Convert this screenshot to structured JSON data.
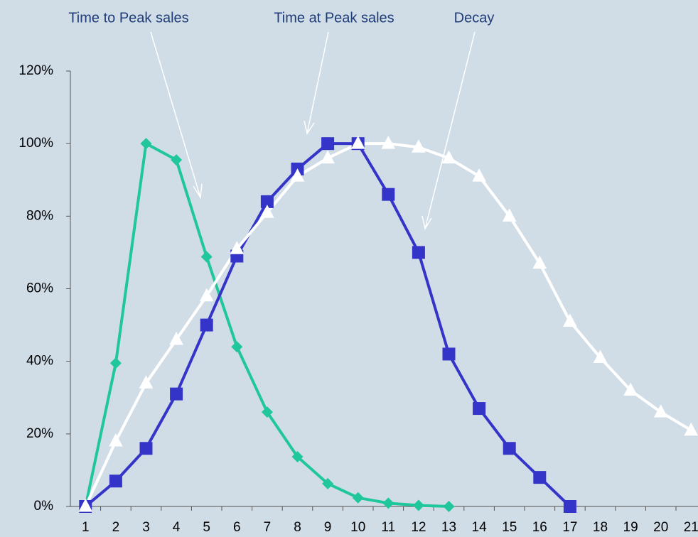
{
  "chart_data": {
    "type": "line",
    "annotations": [
      "Time to Peak sales",
      "Time at Peak sales",
      "Decay"
    ],
    "categories": [
      "1",
      "2",
      "3",
      "4",
      "5",
      "6",
      "7",
      "8",
      "9",
      "10",
      "11",
      "12",
      "13",
      "14",
      "15",
      "16",
      "17",
      "18",
      "19",
      "20",
      "21"
    ],
    "series": [
      {
        "color": "#1fc79a",
        "marker": "diamond",
        "values": [
          0,
          39.5,
          100,
          95.5,
          68.8,
          44,
          26,
          13.7,
          6.3,
          2.4,
          0.9,
          0.3,
          0,
          null,
          null,
          null,
          null,
          null,
          null,
          null,
          null
        ]
      },
      {
        "color": "#3434c8",
        "marker": "square",
        "values": [
          0,
          7,
          16,
          31,
          50,
          69,
          84,
          93,
          100,
          100,
          86,
          70,
          42,
          27,
          16,
          8,
          0,
          null,
          null,
          null,
          null
        ]
      },
      {
        "color": "#ffffff",
        "marker": "triangle",
        "values": [
          0,
          18,
          34,
          46,
          58,
          71,
          81,
          91,
          96,
          100,
          100,
          99,
          96,
          91,
          80,
          67,
          51,
          41,
          32,
          26,
          21
        ]
      }
    ],
    "ylim": [
      0,
      120
    ],
    "yticks": [
      {
        "value": 0,
        "label": "0%"
      },
      {
        "value": 20,
        "label": "20%"
      },
      {
        "value": 40,
        "label": "40%"
      },
      {
        "value": 60,
        "label": "60%"
      },
      {
        "value": 80,
        "label": "80%"
      },
      {
        "value": 100,
        "label": "100%"
      },
      {
        "value": 120,
        "label": "120%"
      }
    ],
    "grid": false
  }
}
